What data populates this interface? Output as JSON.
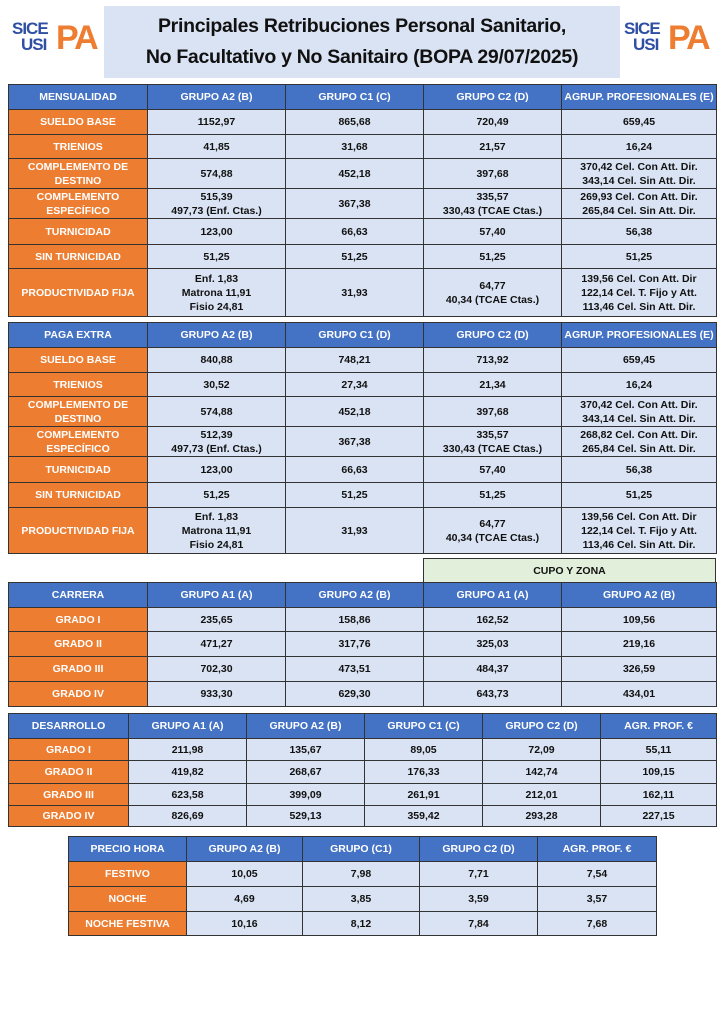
{
  "header": {
    "title_lines": [
      "Principales Retribuciones Personal Sanitario,",
      "No Facultativo y No Sanitairo (BOPA 29/07/2025)"
    ],
    "logo_left": {
      "line1": "SICE",
      "line2": "USI",
      "accent": "PA"
    },
    "logo_right": {
      "line1": "SICE",
      "line2": "USI",
      "accent": "PA"
    }
  },
  "colors": {
    "header_blue": "#4472c4",
    "row_label_orange": "#ed7d31",
    "cell_light_blue": "#dae3f3",
    "cupo_green": "#e2efda"
  },
  "tables": [
    {
      "id": "mensualidad",
      "headers": [
        "MENSUALIDAD",
        "GRUPO A2 (B)",
        "GRUPO C1 (C)",
        "GRUPO C2 (D)",
        "AGRUP. PROFESIONALES (E)"
      ],
      "rows": [
        {
          "label": [
            "SUELDO BASE"
          ],
          "cells": [
            [
              "1152,97"
            ],
            [
              "865,68"
            ],
            [
              "720,49"
            ],
            [
              "659,45"
            ]
          ]
        },
        {
          "label": [
            "TRIENIOS"
          ],
          "cells": [
            [
              "41,85"
            ],
            [
              "31,68"
            ],
            [
              "21,57"
            ],
            [
              "16,24"
            ]
          ]
        },
        {
          "label": [
            "COMPLEMENTO DE",
            "DESTINO"
          ],
          "cells": [
            [
              "574,88"
            ],
            [
              "452,18"
            ],
            [
              "397,68"
            ],
            [
              "370,42 Cel. Con Att. Dir.",
              "343,14 Cel. Sin Att. Dir."
            ]
          ]
        },
        {
          "label": [
            "COMPLEMENTO",
            "ESPECÍFICO"
          ],
          "cells": [
            [
              "515,39",
              "497,73 (Enf. Ctas.)"
            ],
            [
              "367,38"
            ],
            [
              "335,57",
              "330,43 (TCAE Ctas.)"
            ],
            [
              "269,93 Cel. Con Att. Dir.",
              "265,84 Cel. Sin Att. Dir."
            ]
          ]
        },
        {
          "label": [
            "TURNICIDAD"
          ],
          "cells": [
            [
              "123,00"
            ],
            [
              "66,63"
            ],
            [
              "57,40"
            ],
            [
              "56,38"
            ]
          ]
        },
        {
          "label": [
            "SIN TURNICIDAD"
          ],
          "cells": [
            [
              "51,25"
            ],
            [
              "51,25"
            ],
            [
              "51,25"
            ],
            [
              "51,25"
            ]
          ]
        },
        {
          "label": [
            "PRODUCTIVIDAD FIJA"
          ],
          "cells": [
            [
              "Enf. 1,83",
              "Matrona 11,91",
              "Fisio 24,81"
            ],
            [
              "31,93"
            ],
            [
              "64,77",
              "40,34 (TCAE Ctas.)"
            ],
            [
              "139,56 Cel. Con Att. Dir",
              "122,14 Cel. T. Fijo y Att.",
              "113,46 Cel. Sin Att. Dir."
            ]
          ]
        }
      ]
    },
    {
      "id": "paga-extra",
      "headers": [
        "PAGA EXTRA",
        "GRUPO A2 (B)",
        "GRUPO C1 (D)",
        "GRUPO C2 (D)",
        "AGRUP. PROFESIONALES (E)"
      ],
      "rows": [
        {
          "label": [
            "SUELDO BASE"
          ],
          "cells": [
            [
              "840,88"
            ],
            [
              "748,21"
            ],
            [
              "713,92"
            ],
            [
              "659,45"
            ]
          ]
        },
        {
          "label": [
            "TRIENIOS"
          ],
          "cells": [
            [
              "30,52"
            ],
            [
              "27,34"
            ],
            [
              "21,34"
            ],
            [
              "16,24"
            ]
          ]
        },
        {
          "label": [
            "COMPLEMENTO DE",
            "DESTINO"
          ],
          "cells": [
            [
              "574,88"
            ],
            [
              "452,18"
            ],
            [
              "397,68"
            ],
            [
              "370,42 Cel. Con Att. Dir.",
              "343,14 Cel. Sin Att. Dir."
            ]
          ]
        },
        {
          "label": [
            "COMPLEMENTO",
            "ESPECÍFICO"
          ],
          "cells": [
            [
              "512,39",
              "497,73 (Enf. Ctas.)"
            ],
            [
              "367,38"
            ],
            [
              "335,57",
              "330,43 (TCAE Ctas.)"
            ],
            [
              "268,82 Cel. Con Att. Dir.",
              "265,84 Cel. Sin Att. Dir."
            ]
          ]
        },
        {
          "label": [
            "TURNICIDAD"
          ],
          "cells": [
            [
              "123,00"
            ],
            [
              "66,63"
            ],
            [
              "57,40"
            ],
            [
              "56,38"
            ]
          ]
        },
        {
          "label": [
            "SIN TURNICIDAD"
          ],
          "cells": [
            [
              "51,25"
            ],
            [
              "51,25"
            ],
            [
              "51,25"
            ],
            [
              "51,25"
            ]
          ]
        },
        {
          "label": [
            "PRODUCTIVIDAD FIJA"
          ],
          "cells": [
            [
              "Enf. 1,83",
              "Matrona 11,91",
              "Fisio 24,81"
            ],
            [
              "31,93"
            ],
            [
              "64,77",
              "40,34 (TCAE Ctas.)"
            ],
            [
              "139,56 Cel. Con Att. Dir",
              "122,14 Cel. T. Fijo y Att.",
              "113,46 Cel. Sin Att. Dir."
            ]
          ]
        }
      ]
    },
    {
      "id": "carrera",
      "supra_header": "CUPO Y ZONA",
      "headers": [
        "CARRERA",
        "GRUPO A1 (A)",
        "GRUPO A2 (B)",
        "GRUPO A1 (A)",
        "GRUPO A2 (B)"
      ],
      "rows": [
        {
          "label": [
            "GRADO I"
          ],
          "cells": [
            [
              "235,65"
            ],
            [
              "158,86"
            ],
            [
              "162,52"
            ],
            [
              "109,56"
            ]
          ]
        },
        {
          "label": [
            "GRADO II"
          ],
          "cells": [
            [
              "471,27"
            ],
            [
              "317,76"
            ],
            [
              "325,03"
            ],
            [
              "219,16"
            ]
          ]
        },
        {
          "label": [
            "GRADO III"
          ],
          "cells": [
            [
              "702,30"
            ],
            [
              "473,51"
            ],
            [
              "484,37"
            ],
            [
              "326,59"
            ]
          ]
        },
        {
          "label": [
            "GRADO IV"
          ],
          "cells": [
            [
              "933,30"
            ],
            [
              "629,30"
            ],
            [
              "643,73"
            ],
            [
              "434,01"
            ]
          ]
        }
      ]
    },
    {
      "id": "desarrollo",
      "headers": [
        "DESARROLLO",
        "GRUPO A1 (A)",
        "GRUPO A2 (B)",
        "GRUPO C1 (C)",
        "GRUPO C2 (D)",
        "AGR. PROF. €"
      ],
      "rows": [
        {
          "label": [
            "GRADO I"
          ],
          "cells": [
            [
              "211,98"
            ],
            [
              "135,67"
            ],
            [
              "89,05"
            ],
            [
              "72,09"
            ],
            [
              "55,11"
            ]
          ]
        },
        {
          "label": [
            "GRADO II"
          ],
          "cells": [
            [
              "419,82"
            ],
            [
              "268,67"
            ],
            [
              "176,33"
            ],
            [
              "142,74"
            ],
            [
              "109,15"
            ]
          ]
        },
        {
          "label": [
            "GRADO III"
          ],
          "cells": [
            [
              "623,58"
            ],
            [
              "399,09"
            ],
            [
              "261,91"
            ],
            [
              "212,01"
            ],
            [
              "162,11"
            ]
          ]
        },
        {
          "label": [
            "GRADO IV"
          ],
          "cells": [
            [
              "826,69"
            ],
            [
              "529,13"
            ],
            [
              "359,42"
            ],
            [
              "293,28"
            ],
            [
              "227,15"
            ]
          ]
        }
      ]
    },
    {
      "id": "precio-hora",
      "headers": [
        "PRECIO HORA",
        "GRUPO A2 (B)",
        "GRUPO (C1)",
        "GRUPO C2 (D)",
        "AGR. PROF. €"
      ],
      "rows": [
        {
          "label": [
            "FESTIVO"
          ],
          "cells": [
            [
              "10,05"
            ],
            [
              "7,98"
            ],
            [
              "7,71"
            ],
            [
              "7,54"
            ]
          ]
        },
        {
          "label": [
            "NOCHE"
          ],
          "cells": [
            [
              "4,69"
            ],
            [
              "3,85"
            ],
            [
              "3,59"
            ],
            [
              "3,57"
            ]
          ]
        },
        {
          "label": [
            "NOCHE FESTIVA"
          ],
          "cells": [
            [
              "10,16"
            ],
            [
              "8,12"
            ],
            [
              "7,84"
            ],
            [
              "7,68"
            ]
          ]
        }
      ]
    }
  ]
}
